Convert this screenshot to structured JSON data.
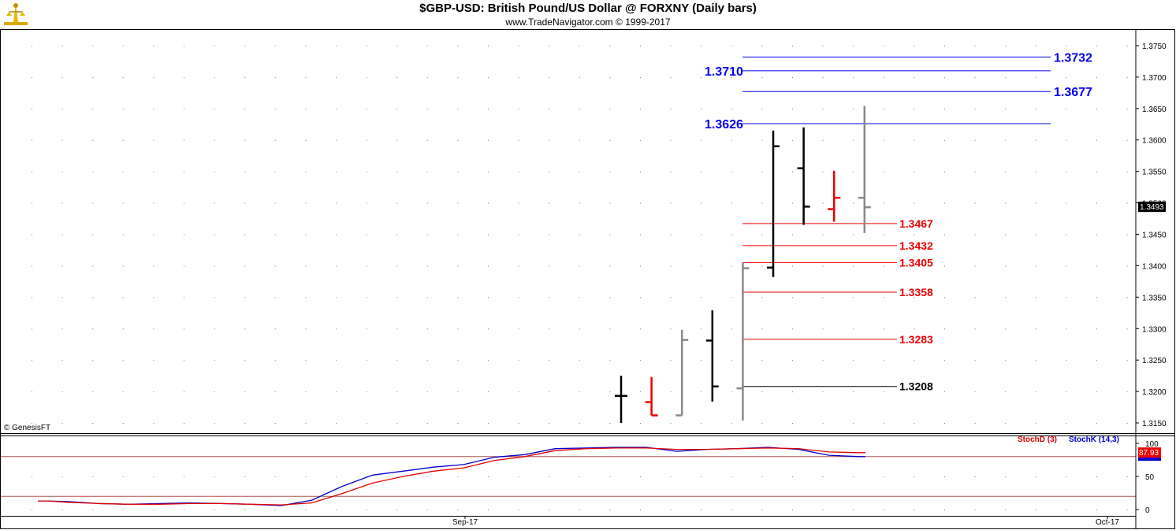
{
  "header": {
    "title": "$GBP-USD:  British Pound/US Dollar @ FORXNY  (Daily bars)",
    "subtitle": "www.TradeNavigator.com © 1999-2017",
    "logo_icon": "trade-navigator-logo-icon"
  },
  "copyright": "© GenesisFT",
  "colors": {
    "blue": "#0000ee",
    "red": "#ee0000",
    "black": "#000000",
    "gray": "#888888",
    "stoch_k": "#0000cc",
    "stoch_d": "#dd0000"
  },
  "chart_data": [
    {
      "type": "ohlc",
      "title": "$GBP-USD:  British Pound/US Dollar @ FORXNY  (Daily bars)",
      "ylim": [
        1.3135,
        1.3775
      ],
      "y_ticks": [
        "1.3750",
        "1.3700",
        "1.3650",
        "1.3600",
        "1.3550",
        "1.3500",
        "1.3450",
        "1.3400",
        "1.3350",
        "1.3300",
        "1.3250",
        "1.3200",
        "1.3150"
      ],
      "x_ticks": [
        "Sep-17",
        "Oct-17"
      ],
      "last_price": "1.3493",
      "bars": [
        {
          "open": 1.3193,
          "high": 1.3225,
          "low": 1.315,
          "close": 1.3193,
          "color": "black"
        },
        {
          "open": 1.3183,
          "high": 1.3223,
          "low": 1.3162,
          "close": 1.3162,
          "color": "red"
        },
        {
          "open": 1.3162,
          "high": 1.3298,
          "low": 1.3162,
          "close": 1.3282,
          "color": "gray"
        },
        {
          "open": 1.3281,
          "high": 1.3329,
          "low": 1.3184,
          "close": 1.3208,
          "color": "black"
        },
        {
          "open": 1.3205,
          "high": 1.3405,
          "low": 1.3154,
          "close": 1.3396,
          "color": "gray"
        },
        {
          "open": 1.3397,
          "high": 1.3615,
          "low": 1.3382,
          "close": 1.359,
          "color": "black"
        },
        {
          "open": 1.3555,
          "high": 1.362,
          "low": 1.3465,
          "close": 1.3494,
          "color": "black"
        },
        {
          "open": 1.349,
          "high": 1.3551,
          "low": 1.347,
          "close": 1.3508,
          "color": "red"
        },
        {
          "open": 1.3508,
          "high": 1.3654,
          "low": 1.3452,
          "close": 1.3493,
          "color": "gray"
        }
      ],
      "levels": [
        {
          "value": 1.3732,
          "label": "1.3732",
          "color": "blue",
          "label_side": "right"
        },
        {
          "value": 1.371,
          "label": "1.3710",
          "color": "blue",
          "label_side": "left"
        },
        {
          "value": 1.3677,
          "label": "1.3677",
          "color": "blue",
          "label_side": "right"
        },
        {
          "value": 1.3626,
          "label": "1.3626",
          "color": "blue",
          "label_side": "left"
        },
        {
          "value": 1.3467,
          "label": "1.3467",
          "color": "red",
          "label_side": "end"
        },
        {
          "value": 1.3432,
          "label": "1.3432",
          "color": "red",
          "label_side": "end"
        },
        {
          "value": 1.3405,
          "label": "1.3405",
          "color": "red",
          "label_side": "end"
        },
        {
          "value": 1.3358,
          "label": "1.3358",
          "color": "red",
          "label_side": "end"
        },
        {
          "value": 1.3283,
          "label": "1.3283",
          "color": "red",
          "label_side": "end"
        },
        {
          "value": 1.3208,
          "label": "1.3208",
          "color": "black",
          "label_side": "end"
        }
      ]
    },
    {
      "type": "line",
      "ylim": [
        0,
        100
      ],
      "y_ticks": [
        "100",
        "50",
        "0"
      ],
      "reference_lines": [
        80,
        20
      ],
      "last_value": "87.93",
      "series": [
        {
          "name": "StochK (14,3)",
          "color": "stoch_k",
          "x": [
            0,
            0.3,
            1,
            2,
            3,
            4,
            5,
            6,
            7,
            8,
            9,
            10,
            11,
            12,
            13,
            14,
            15,
            16,
            17,
            18,
            19,
            20,
            21,
            22,
            23,
            24,
            25,
            26,
            27,
            28,
            29,
            30,
            31,
            32
          ],
          "y": [
            13,
            13,
            12,
            9,
            8,
            9,
            10,
            9,
            8,
            6,
            14,
            35,
            52,
            58,
            64,
            68,
            79,
            83,
            92,
            93,
            94,
            94,
            88,
            91,
            92,
            94,
            91,
            82,
            80,
            80,
            80,
            80,
            80,
            80
          ]
        },
        {
          "name": "StochD (3)",
          "color": "stoch_d",
          "x": [
            0,
            0.3,
            1,
            2,
            3,
            4,
            5,
            6,
            7,
            8,
            9,
            10,
            11,
            12,
            13,
            14,
            15,
            16,
            17,
            18,
            19,
            20,
            21,
            22,
            23,
            24,
            25,
            26,
            27,
            28,
            29,
            30,
            31,
            32
          ],
          "y": [
            13,
            13,
            11,
            9,
            8,
            8,
            9,
            9,
            8,
            7,
            10,
            24,
            40,
            50,
            58,
            63,
            74,
            80,
            89,
            92,
            93,
            93,
            91,
            91,
            92,
            93,
            92,
            87,
            86,
            86,
            86,
            86,
            86,
            86
          ]
        }
      ]
    }
  ]
}
